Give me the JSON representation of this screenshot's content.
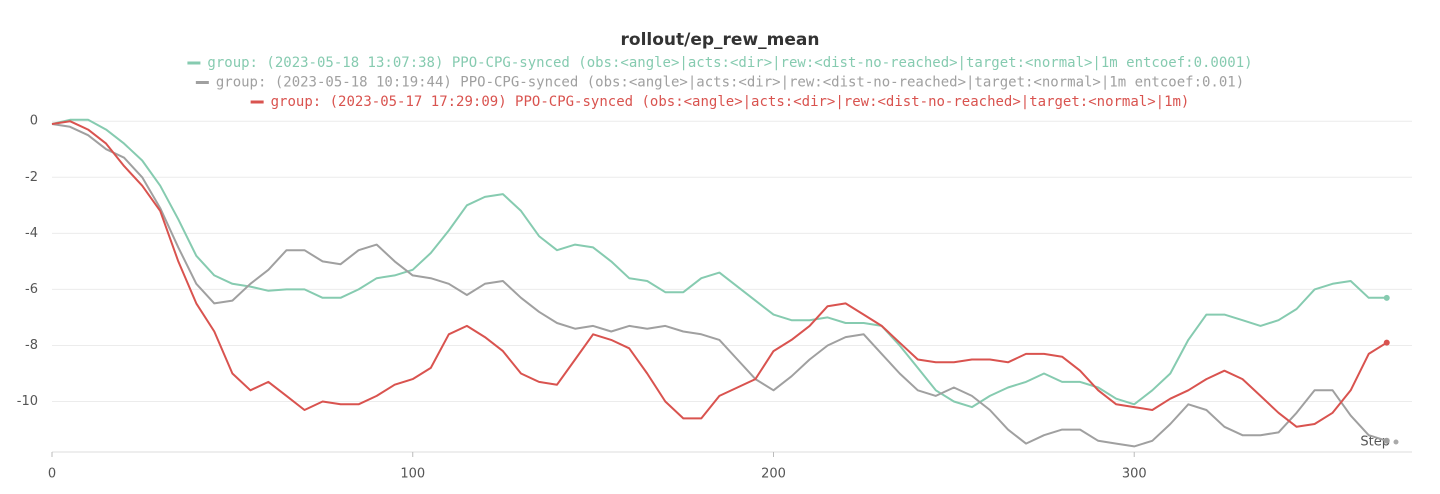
{
  "chart_data": {
    "type": "line",
    "title": "rollout/ep_rew_mean",
    "xlabel": "Step",
    "x": [
      0,
      5,
      10,
      15,
      20,
      25,
      30,
      35,
      40,
      45,
      50,
      55,
      60,
      65,
      70,
      75,
      80,
      85,
      90,
      95,
      100,
      105,
      110,
      115,
      120,
      125,
      130,
      135,
      140,
      145,
      150,
      155,
      160,
      165,
      170,
      175,
      180,
      185,
      190,
      195,
      200,
      205,
      210,
      215,
      220,
      225,
      230,
      235,
      240,
      245,
      250,
      255,
      260,
      265,
      270,
      275,
      280,
      285,
      290,
      295,
      300,
      305,
      310,
      315,
      320,
      325,
      330,
      335,
      340,
      345,
      350,
      355,
      360,
      365,
      370
    ],
    "series": [
      {
        "name": "group: (2023-05-18 13:07:38) PPO-CPG-synced (obs:<angle>|acts:<dir>|rew:<dist-no-reached>|target:<normal>|1m entcoef:0.0001)",
        "color": "#86cbb0",
        "values": [
          -0.1,
          0.05,
          0.05,
          -0.3,
          -0.8,
          -1.4,
          -2.3,
          -3.5,
          -4.8,
          -5.5,
          -5.8,
          -5.9,
          -6.05,
          -6.0,
          -6.0,
          -6.3,
          -6.3,
          -6.0,
          -5.6,
          -5.5,
          -5.3,
          -4.7,
          -3.9,
          -3.0,
          -2.7,
          -2.6,
          -3.2,
          -4.1,
          -4.6,
          -4.4,
          -4.5,
          -5.0,
          -5.6,
          -5.7,
          -6.1,
          -6.1,
          -5.6,
          -5.4,
          -5.9,
          -6.4,
          -6.9,
          -7.1,
          -7.1,
          -7.0,
          -7.2,
          -7.2,
          -7.3,
          -8.0,
          -8.8,
          -9.6,
          -10.0,
          -10.2,
          -9.8,
          -9.5,
          -9.3,
          -9.0,
          -9.3,
          -9.3,
          -9.5,
          -9.9,
          -10.1,
          -9.6,
          -9.0,
          -7.8,
          -6.9,
          -6.9,
          -7.1,
          -7.3,
          -7.1,
          -6.7,
          -6.0,
          -5.8,
          -5.7,
          -6.3,
          -6.3
        ]
      },
      {
        "name": "group: (2023-05-18 10:19:44) PPO-CPG-synced (obs:<angle>|acts:<dir>|rew:<dist-no-reached>|target:<normal>|1m entcoef:0.01)",
        "color": "#a0a0a0",
        "values": [
          -0.1,
          -0.2,
          -0.5,
          -1.0,
          -1.3,
          -2.0,
          -3.1,
          -4.5,
          -5.8,
          -6.5,
          -6.4,
          -5.8,
          -5.3,
          -4.6,
          -4.6,
          -5.0,
          -5.1,
          -4.6,
          -4.4,
          -5.0,
          -5.5,
          -5.6,
          -5.8,
          -6.2,
          -5.8,
          -5.7,
          -6.3,
          -6.8,
          -7.2,
          -7.4,
          -7.3,
          -7.5,
          -7.3,
          -7.4,
          -7.3,
          -7.5,
          -7.6,
          -7.8,
          -8.5,
          -9.2,
          -9.6,
          -9.1,
          -8.5,
          -8.0,
          -7.7,
          -7.6,
          -8.3,
          -9.0,
          -9.6,
          -9.8,
          -9.5,
          -9.8,
          -10.3,
          -11.0,
          -11.5,
          -11.2,
          -11.0,
          -11.0,
          -11.4,
          -11.5,
          -11.6,
          -11.4,
          -10.8,
          -10.1,
          -10.3,
          -10.9,
          -11.2,
          -11.2,
          -11.1,
          -10.4,
          -9.6,
          -9.6,
          -10.5,
          -11.2,
          -11.4
        ]
      },
      {
        "name": "group: (2023-05-17 17:29:09) PPO-CPG-synced (obs:<angle>|acts:<dir>|rew:<dist-no-reached>|target:<normal>|1m)",
        "color": "#d9534f",
        "values": [
          -0.1,
          0.0,
          -0.3,
          -0.8,
          -1.6,
          -2.3,
          -3.2,
          -5.0,
          -6.5,
          -7.5,
          -9.0,
          -9.6,
          -9.3,
          -9.8,
          -10.3,
          -10.0,
          -10.1,
          -10.1,
          -9.8,
          -9.4,
          -9.2,
          -8.8,
          -7.6,
          -7.3,
          -7.7,
          -8.2,
          -9.0,
          -9.3,
          -9.4,
          -8.5,
          -7.6,
          -7.8,
          -8.1,
          -9.0,
          -10.0,
          -10.6,
          -10.6,
          -9.8,
          -9.5,
          -9.2,
          -8.2,
          -7.8,
          -7.3,
          -6.6,
          -6.5,
          -6.9,
          -7.3,
          -7.9,
          -8.5,
          -8.6,
          -8.6,
          -8.5,
          -8.5,
          -8.6,
          -8.3,
          -8.3,
          -8.4,
          -8.9,
          -9.6,
          -10.1,
          -10.2,
          -10.3,
          -9.9,
          -9.6,
          -9.2,
          -8.9,
          -9.2,
          -9.8,
          -10.4,
          -10.9,
          -10.8,
          -10.4,
          -9.6,
          -8.3,
          -7.9
        ]
      }
    ],
    "xlim": [
      0,
      377
    ],
    "xticks": [
      0,
      100,
      200,
      300
    ],
    "ylim": [
      -11.8,
      0.4
    ],
    "yticks": [
      0,
      -2,
      -4,
      -6,
      -8,
      -10
    ],
    "grid": true
  }
}
